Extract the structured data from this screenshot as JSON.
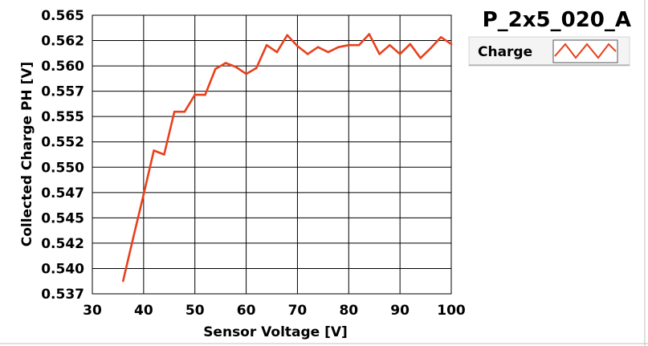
{
  "chart_data": {
    "type": "line",
    "title": "P_2x5_020_A",
    "xlabel": "Sensor Voltage [V]",
    "ylabel": "Collected Charge PH [V]",
    "xlim": [
      30,
      100
    ],
    "ylim": [
      0.537,
      0.565
    ],
    "x_ticks": [
      "30",
      "40",
      "50",
      "60",
      "70",
      "80",
      "90",
      "100"
    ],
    "y_ticks": [
      "0.537",
      "0.540",
      "0.542",
      "0.545",
      "0.547",
      "0.550",
      "0.552",
      "0.555",
      "0.557",
      "0.560",
      "0.562",
      "0.565"
    ],
    "grid": true,
    "legend_position": "top-right",
    "series": [
      {
        "name": "Charge",
        "color": "#e8401c",
        "x": [
          36,
          38,
          40,
          42,
          44,
          46,
          48,
          50,
          52,
          54,
          56,
          58,
          60,
          62,
          64,
          66,
          68,
          70,
          72,
          74,
          76,
          78,
          80,
          82,
          84,
          86,
          88,
          90,
          92,
          94,
          96,
          98,
          100
        ],
        "y": [
          0.5383,
          0.5427,
          0.547,
          0.5514,
          0.551,
          0.5553,
          0.5553,
          0.557,
          0.557,
          0.5596,
          0.5602,
          0.5598,
          0.5591,
          0.5597,
          0.562,
          0.5613,
          0.563,
          0.5619,
          0.5611,
          0.5618,
          0.5613,
          0.5618,
          0.562,
          0.562,
          0.5631,
          0.5611,
          0.562,
          0.5611,
          0.5621,
          0.5607,
          0.5617,
          0.5628,
          0.5621
        ]
      }
    ]
  }
}
